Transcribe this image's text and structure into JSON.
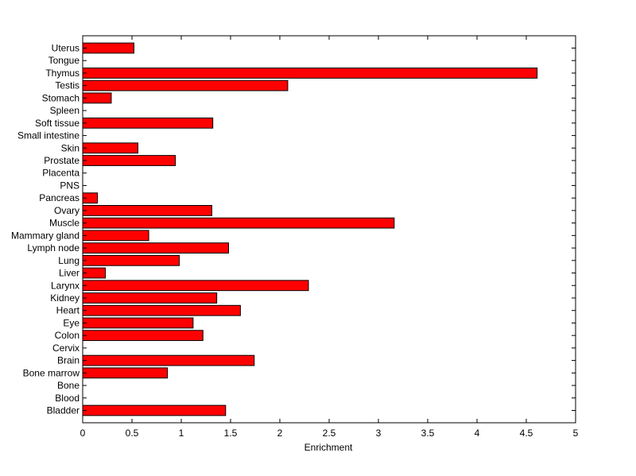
{
  "chart_data": {
    "type": "bar",
    "orientation": "horizontal",
    "categories": [
      "Uterus",
      "Tongue",
      "Thymus",
      "Testis",
      "Stomach",
      "Spleen",
      "Soft tissue",
      "Small intestine",
      "Skin",
      "Prostate",
      "Placenta",
      "PNS",
      "Pancreas",
      "Ovary",
      "Muscle",
      "Mammary gland",
      "Lymph node",
      "Lung",
      "Liver",
      "Larynx",
      "Kidney",
      "Heart",
      "Eye",
      "Colon",
      "Cervix",
      "Brain",
      "Bone marrow",
      "Bone",
      "Blood",
      "Bladder"
    ],
    "values": [
      0.52,
      0,
      4.61,
      2.08,
      0.29,
      0,
      1.32,
      0,
      0.56,
      0.94,
      0,
      0,
      0.15,
      1.31,
      3.16,
      0.67,
      1.48,
      0.98,
      0.23,
      2.29,
      1.36,
      1.6,
      1.12,
      1.22,
      0,
      1.74,
      0.86,
      0,
      0,
      1.45
    ],
    "xlabel": "Enrichment",
    "ylabel": "",
    "title": "",
    "xlim": [
      0,
      5
    ],
    "xticks": [
      "0",
      "0.5",
      "1",
      "1.5",
      "2",
      "2.5",
      "3",
      "3.5",
      "4",
      "4.5",
      "5"
    ],
    "grid": false,
    "bar_color": "#ff0000",
    "bar_edge_color": "#000000"
  }
}
